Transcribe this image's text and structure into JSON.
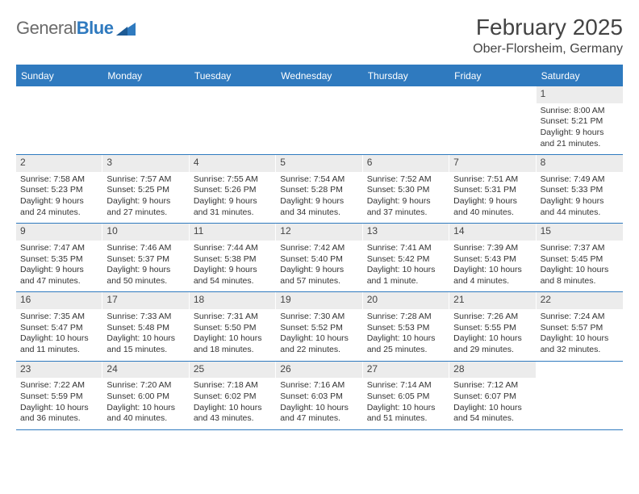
{
  "logo": {
    "text1": "General",
    "text2": "Blue"
  },
  "title": "February 2025",
  "location": "Ober-Florsheim, Germany",
  "colors": {
    "brand": "#2f7abf",
    "header_text": "#ffffff",
    "daynum_bg": "#ececec",
    "text": "#333333",
    "page_bg": "#ffffff"
  },
  "day_labels": [
    "Sunday",
    "Monday",
    "Tuesday",
    "Wednesday",
    "Thursday",
    "Friday",
    "Saturday"
  ],
  "weeks": [
    [
      {
        "n": "",
        "sr": "",
        "ss": "",
        "dl1": "",
        "dl2": ""
      },
      {
        "n": "",
        "sr": "",
        "ss": "",
        "dl1": "",
        "dl2": ""
      },
      {
        "n": "",
        "sr": "",
        "ss": "",
        "dl1": "",
        "dl2": ""
      },
      {
        "n": "",
        "sr": "",
        "ss": "",
        "dl1": "",
        "dl2": ""
      },
      {
        "n": "",
        "sr": "",
        "ss": "",
        "dl1": "",
        "dl2": ""
      },
      {
        "n": "",
        "sr": "",
        "ss": "",
        "dl1": "",
        "dl2": ""
      },
      {
        "n": "1",
        "sr": "Sunrise: 8:00 AM",
        "ss": "Sunset: 5:21 PM",
        "dl1": "Daylight: 9 hours",
        "dl2": "and 21 minutes."
      }
    ],
    [
      {
        "n": "2",
        "sr": "Sunrise: 7:58 AM",
        "ss": "Sunset: 5:23 PM",
        "dl1": "Daylight: 9 hours",
        "dl2": "and 24 minutes."
      },
      {
        "n": "3",
        "sr": "Sunrise: 7:57 AM",
        "ss": "Sunset: 5:25 PM",
        "dl1": "Daylight: 9 hours",
        "dl2": "and 27 minutes."
      },
      {
        "n": "4",
        "sr": "Sunrise: 7:55 AM",
        "ss": "Sunset: 5:26 PM",
        "dl1": "Daylight: 9 hours",
        "dl2": "and 31 minutes."
      },
      {
        "n": "5",
        "sr": "Sunrise: 7:54 AM",
        "ss": "Sunset: 5:28 PM",
        "dl1": "Daylight: 9 hours",
        "dl2": "and 34 minutes."
      },
      {
        "n": "6",
        "sr": "Sunrise: 7:52 AM",
        "ss": "Sunset: 5:30 PM",
        "dl1": "Daylight: 9 hours",
        "dl2": "and 37 minutes."
      },
      {
        "n": "7",
        "sr": "Sunrise: 7:51 AM",
        "ss": "Sunset: 5:31 PM",
        "dl1": "Daylight: 9 hours",
        "dl2": "and 40 minutes."
      },
      {
        "n": "8",
        "sr": "Sunrise: 7:49 AM",
        "ss": "Sunset: 5:33 PM",
        "dl1": "Daylight: 9 hours",
        "dl2": "and 44 minutes."
      }
    ],
    [
      {
        "n": "9",
        "sr": "Sunrise: 7:47 AM",
        "ss": "Sunset: 5:35 PM",
        "dl1": "Daylight: 9 hours",
        "dl2": "and 47 minutes."
      },
      {
        "n": "10",
        "sr": "Sunrise: 7:46 AM",
        "ss": "Sunset: 5:37 PM",
        "dl1": "Daylight: 9 hours",
        "dl2": "and 50 minutes."
      },
      {
        "n": "11",
        "sr": "Sunrise: 7:44 AM",
        "ss": "Sunset: 5:38 PM",
        "dl1": "Daylight: 9 hours",
        "dl2": "and 54 minutes."
      },
      {
        "n": "12",
        "sr": "Sunrise: 7:42 AM",
        "ss": "Sunset: 5:40 PM",
        "dl1": "Daylight: 9 hours",
        "dl2": "and 57 minutes."
      },
      {
        "n": "13",
        "sr": "Sunrise: 7:41 AM",
        "ss": "Sunset: 5:42 PM",
        "dl1": "Daylight: 10 hours",
        "dl2": "and 1 minute."
      },
      {
        "n": "14",
        "sr": "Sunrise: 7:39 AM",
        "ss": "Sunset: 5:43 PM",
        "dl1": "Daylight: 10 hours",
        "dl2": "and 4 minutes."
      },
      {
        "n": "15",
        "sr": "Sunrise: 7:37 AM",
        "ss": "Sunset: 5:45 PM",
        "dl1": "Daylight: 10 hours",
        "dl2": "and 8 minutes."
      }
    ],
    [
      {
        "n": "16",
        "sr": "Sunrise: 7:35 AM",
        "ss": "Sunset: 5:47 PM",
        "dl1": "Daylight: 10 hours",
        "dl2": "and 11 minutes."
      },
      {
        "n": "17",
        "sr": "Sunrise: 7:33 AM",
        "ss": "Sunset: 5:48 PM",
        "dl1": "Daylight: 10 hours",
        "dl2": "and 15 minutes."
      },
      {
        "n": "18",
        "sr": "Sunrise: 7:31 AM",
        "ss": "Sunset: 5:50 PM",
        "dl1": "Daylight: 10 hours",
        "dl2": "and 18 minutes."
      },
      {
        "n": "19",
        "sr": "Sunrise: 7:30 AM",
        "ss": "Sunset: 5:52 PM",
        "dl1": "Daylight: 10 hours",
        "dl2": "and 22 minutes."
      },
      {
        "n": "20",
        "sr": "Sunrise: 7:28 AM",
        "ss": "Sunset: 5:53 PM",
        "dl1": "Daylight: 10 hours",
        "dl2": "and 25 minutes."
      },
      {
        "n": "21",
        "sr": "Sunrise: 7:26 AM",
        "ss": "Sunset: 5:55 PM",
        "dl1": "Daylight: 10 hours",
        "dl2": "and 29 minutes."
      },
      {
        "n": "22",
        "sr": "Sunrise: 7:24 AM",
        "ss": "Sunset: 5:57 PM",
        "dl1": "Daylight: 10 hours",
        "dl2": "and 32 minutes."
      }
    ],
    [
      {
        "n": "23",
        "sr": "Sunrise: 7:22 AM",
        "ss": "Sunset: 5:59 PM",
        "dl1": "Daylight: 10 hours",
        "dl2": "and 36 minutes."
      },
      {
        "n": "24",
        "sr": "Sunrise: 7:20 AM",
        "ss": "Sunset: 6:00 PM",
        "dl1": "Daylight: 10 hours",
        "dl2": "and 40 minutes."
      },
      {
        "n": "25",
        "sr": "Sunrise: 7:18 AM",
        "ss": "Sunset: 6:02 PM",
        "dl1": "Daylight: 10 hours",
        "dl2": "and 43 minutes."
      },
      {
        "n": "26",
        "sr": "Sunrise: 7:16 AM",
        "ss": "Sunset: 6:03 PM",
        "dl1": "Daylight: 10 hours",
        "dl2": "and 47 minutes."
      },
      {
        "n": "27",
        "sr": "Sunrise: 7:14 AM",
        "ss": "Sunset: 6:05 PM",
        "dl1": "Daylight: 10 hours",
        "dl2": "and 51 minutes."
      },
      {
        "n": "28",
        "sr": "Sunrise: 7:12 AM",
        "ss": "Sunset: 6:07 PM",
        "dl1": "Daylight: 10 hours",
        "dl2": "and 54 minutes."
      },
      {
        "n": "",
        "sr": "",
        "ss": "",
        "dl1": "",
        "dl2": ""
      }
    ]
  ]
}
